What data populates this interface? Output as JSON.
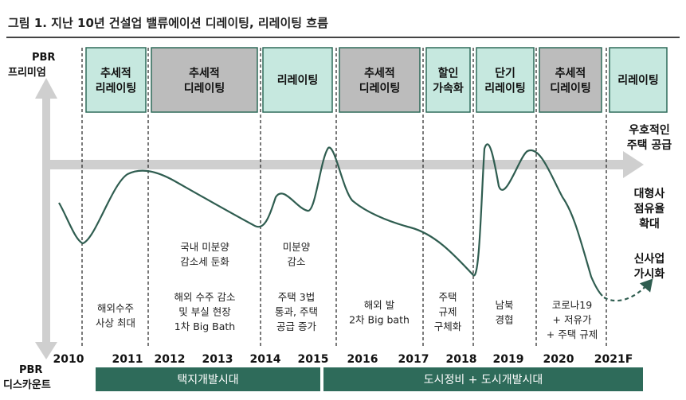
{
  "title": "그림 1. 지난 10년 건설업 밸류에이션 디레이팅, 리레이팅 흐름",
  "axis": {
    "top_label": [
      "PBR",
      "프리미엄"
    ],
    "bottom_label": [
      "PBR",
      "디스카운트"
    ]
  },
  "colors": {
    "rerating_fill": "#c6e8df",
    "derating_fill": "#bcbcbc",
    "box_border": "#2e6b5a",
    "era_bar": "#2e6b5a",
    "arrow": "#cfcfcf",
    "curve": "#2f5d50"
  },
  "phases": [
    {
      "lines": [
        "추세적",
        "리레이팅"
      ],
      "kind": "rerating"
    },
    {
      "lines": [
        "추세적",
        "디레이팅"
      ],
      "kind": "derating"
    },
    {
      "lines": [
        "리레이팅"
      ],
      "kind": "rerating"
    },
    {
      "lines": [
        "추세적",
        "디레이팅"
      ],
      "kind": "derating"
    },
    {
      "lines": [
        "할인",
        "가속화"
      ],
      "kind": "rerating"
    },
    {
      "lines": [
        "단기",
        "리레이팅"
      ],
      "kind": "rerating"
    },
    {
      "lines": [
        "추세적",
        "디레이팅"
      ],
      "kind": "derating"
    },
    {
      "lines": [
        "리레이팅"
      ],
      "kind": "rerating"
    }
  ],
  "notes": [
    {
      "lines": [
        "해외수주",
        "사상 최대"
      ]
    },
    {
      "lines": [
        "국내 미분양",
        "감소세 둔화"
      ]
    },
    {
      "lines": [
        "해외 수주 감소",
        "및 부실 현장",
        "1차 Big Bath"
      ]
    },
    {
      "lines": [
        "미분양",
        "감소"
      ]
    },
    {
      "lines": [
        "주택 3법",
        "통과, 주택",
        "공급 증가"
      ]
    },
    {
      "lines": [
        "해외 발",
        "2차 Big bath"
      ]
    },
    {
      "lines": [
        "주택",
        "규제",
        "구체화"
      ]
    },
    {
      "lines": [
        "남북",
        "경협"
      ]
    },
    {
      "lines": [
        "코로나19",
        "+ 저유가",
        "+ 주택 규제"
      ]
    }
  ],
  "right_labels": [
    {
      "lines": [
        "우호적인",
        "주택 공급"
      ]
    },
    {
      "lines": [
        "대형사",
        "점유율",
        "확대"
      ]
    },
    {
      "lines": [
        "신사업",
        "가시화"
      ]
    }
  ],
  "years": [
    "2010",
    "2011",
    "2012",
    "2013",
    "2014",
    "2015",
    "2016",
    "2017",
    "2018",
    "2019",
    "2020",
    "2021F"
  ],
  "eras": [
    {
      "label": "택지개발시대"
    },
    {
      "label": "도시정비 + 도시개발시대"
    }
  ]
}
